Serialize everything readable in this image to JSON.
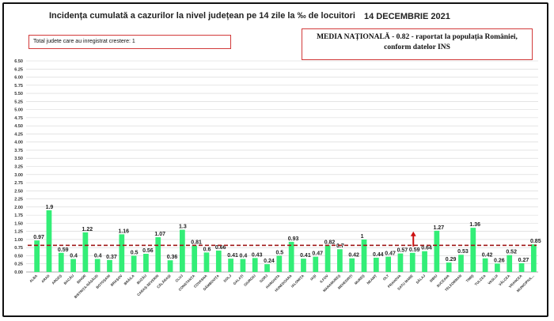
{
  "header": {
    "title": "Incidența cumulată a cazurilor la nivel județean pe 14 zile la ‰ de locuitori",
    "date": "14 DECEMBRIE 2021"
  },
  "notes": {
    "rising_counties": "Total judete care au inregistrat crestere: 1",
    "national_avg_line1": "MEDIA NAȚIONALĂ - 0.82 - raportat la populația României,",
    "national_avg_line2": "conform datelor INS"
  },
  "colors": {
    "bar": "#33ee77",
    "avg_line": "#a01818",
    "arrow": "#cc1111",
    "grid": "#d4d4d4",
    "box_border": "#d23a3a"
  },
  "chart_data": {
    "type": "bar",
    "title": "Incidența cumulată a cazurilor la nivel județean pe 14 zile la ‰ de locuitori",
    "xlabel": "",
    "ylabel": "",
    "ylim": [
      0,
      6.5
    ],
    "yticks": [
      "0.00",
      "0.25",
      "0.50",
      "0.75",
      "1.00",
      "1.25",
      "1.50",
      "1.75",
      "2.00",
      "2.25",
      "2.50",
      "2.75",
      "3.00",
      "3.25",
      "3.50",
      "3.75",
      "4.00",
      "4.25",
      "4.50",
      "4.75",
      "5.00",
      "5.25",
      "5.50",
      "5.75",
      "6.00",
      "6.25",
      "6.50"
    ],
    "ytick_values": [
      0,
      0.25,
      0.5,
      0.75,
      1,
      1.25,
      1.5,
      1.75,
      2,
      2.25,
      2.5,
      2.75,
      3,
      3.25,
      3.5,
      3.75,
      4,
      4.25,
      4.5,
      4.75,
      5,
      5.25,
      5.5,
      5.75,
      6,
      6.25,
      6.5
    ],
    "grid": true,
    "categories": [
      "ALBA",
      "ARAD",
      "ARGEȘ",
      "BACĂU",
      "BIHOR",
      "BISTRIȚA-NĂSĂUD",
      "BOTOȘANI",
      "BRAȘOV",
      "BRĂILA",
      "BUZĂU",
      "CARAȘ-SEVERIN",
      "CĂLĂRAȘI",
      "CLUJ",
      "CONSTANȚA",
      "COVASNA",
      "DÂMBOVIȚA",
      "DOLJ",
      "GALAȚI",
      "GIURGIU",
      "GORJ",
      "HARGHITA",
      "HUNEDOARA",
      "IALOMIȚA",
      "IAȘI",
      "ILFOV",
      "MARAMUREȘ",
      "MEHEDINȚI",
      "MUREȘ",
      "NEAMȚ",
      "OLT",
      "PRAHOVA",
      "SATU MARE",
      "SĂLAJ",
      "SIBIU",
      "SUCEAVA",
      "TELEORMAN",
      "TIMIȘ",
      "TULCEA",
      "VASLUI",
      "VÂLCEA",
      "VRANCEA",
      "MUNICIPIUL..."
    ],
    "values": [
      0.97,
      1.9,
      0.59,
      0.4,
      1.22,
      0.4,
      0.37,
      1.16,
      0.5,
      0.56,
      1.07,
      0.36,
      1.3,
      0.81,
      0.6,
      0.66,
      0.41,
      0.4,
      0.43,
      0.24,
      0.5,
      0.93,
      0.41,
      0.47,
      0.82,
      0.7,
      0.42,
      1,
      0.44,
      0.47,
      0.57,
      0.59,
      0.64,
      1.27,
      0.29,
      0.53,
      1.36,
      0.42,
      0.26,
      0.52,
      0.27,
      0.85
    ],
    "labels": [
      "0.97",
      "1.9",
      "0.59",
      "0.4",
      "1.22",
      "0.4",
      "0.37",
      "1.16",
      "0.5",
      "0.56",
      "1.07",
      "0.36",
      "1.3",
      "0.81",
      "0.6",
      "0.66",
      "0.41",
      "0.4",
      "0.43",
      "0.24",
      "0.5",
      "0.93",
      "0.41",
      "0.47",
      "0.82",
      "0.7",
      "0.42",
      "1",
      "0.44",
      "0.47",
      "0.57",
      "0.59",
      "0.64",
      "1.27",
      "0.29",
      "0.53",
      "1.36",
      "0.42",
      "0.26",
      "0.52",
      "0.27",
      "0.85"
    ],
    "reference_line": 0.82,
    "increase_marker": "SATU MARE"
  }
}
